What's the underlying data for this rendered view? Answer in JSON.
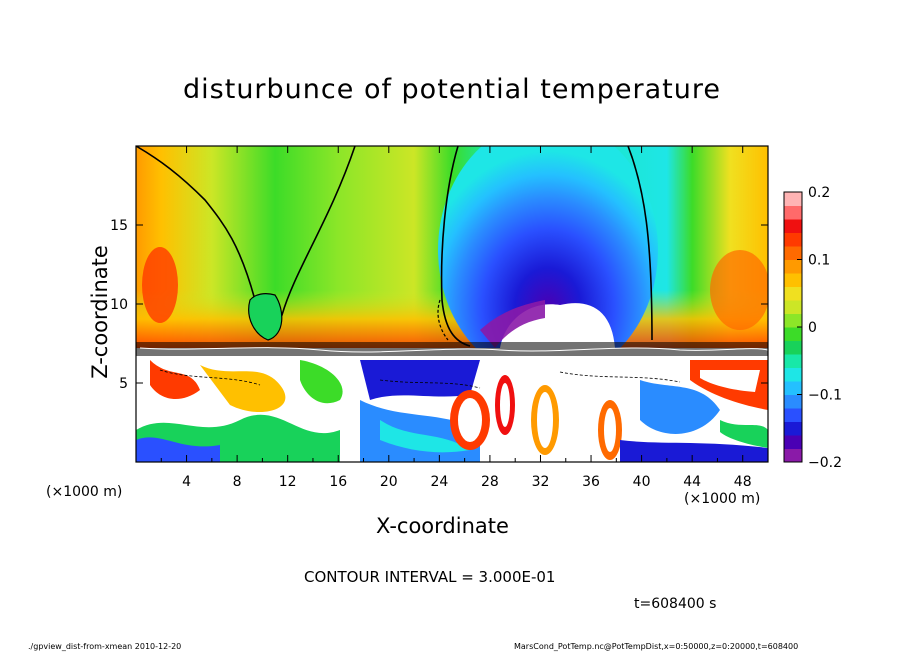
{
  "chart_data": {
    "type": "heatmap",
    "title": "disturbunce of potential temperature",
    "xlabel": "X-coordinate",
    "ylabel": "Z-coordinate",
    "x_unit_label": "(×1000 m)",
    "xlim": [
      0,
      50
    ],
    "ylim": [
      0,
      20
    ],
    "x_ticks": [
      4,
      8,
      12,
      16,
      20,
      24,
      28,
      32,
      36,
      40,
      44,
      48
    ],
    "y_ticks": [
      5,
      10,
      15
    ],
    "colorbar": {
      "range": [
        -0.2,
        0.2
      ],
      "ticks": [
        {
          "value": 0.2,
          "label": "0.2"
        },
        {
          "value": 0.1,
          "label": "0.1"
        },
        {
          "value": 0.0,
          "label": "0"
        },
        {
          "value": -0.1,
          "label": "−0.1"
        },
        {
          "value": -0.2,
          "label": "−0.2"
        }
      ],
      "colors": [
        "#8a1aa8",
        "#4a00b4",
        "#1a1ad6",
        "#2a50ff",
        "#2a8cff",
        "#24c0ff",
        "#1ee6e6",
        "#18e8a8",
        "#18d25a",
        "#3cdc28",
        "#8ce628",
        "#cce626",
        "#f0e020",
        "#ffc000",
        "#ff9a00",
        "#ff6a00",
        "#ff3a00",
        "#f01010",
        "#ff6a6a",
        "#ffb4b4"
      ]
    },
    "contour_interval": "CONTOUR INTERVAL = 3.000E-01",
    "time": "t=608400 s",
    "grid": false
  },
  "footer": {
    "left": "./gpview_dist-from-xmean  2010-12-20",
    "right": "MarsCond_PotTemp.nc@PotTempDist,x=0:50000,z=0:20000,t=608400"
  }
}
